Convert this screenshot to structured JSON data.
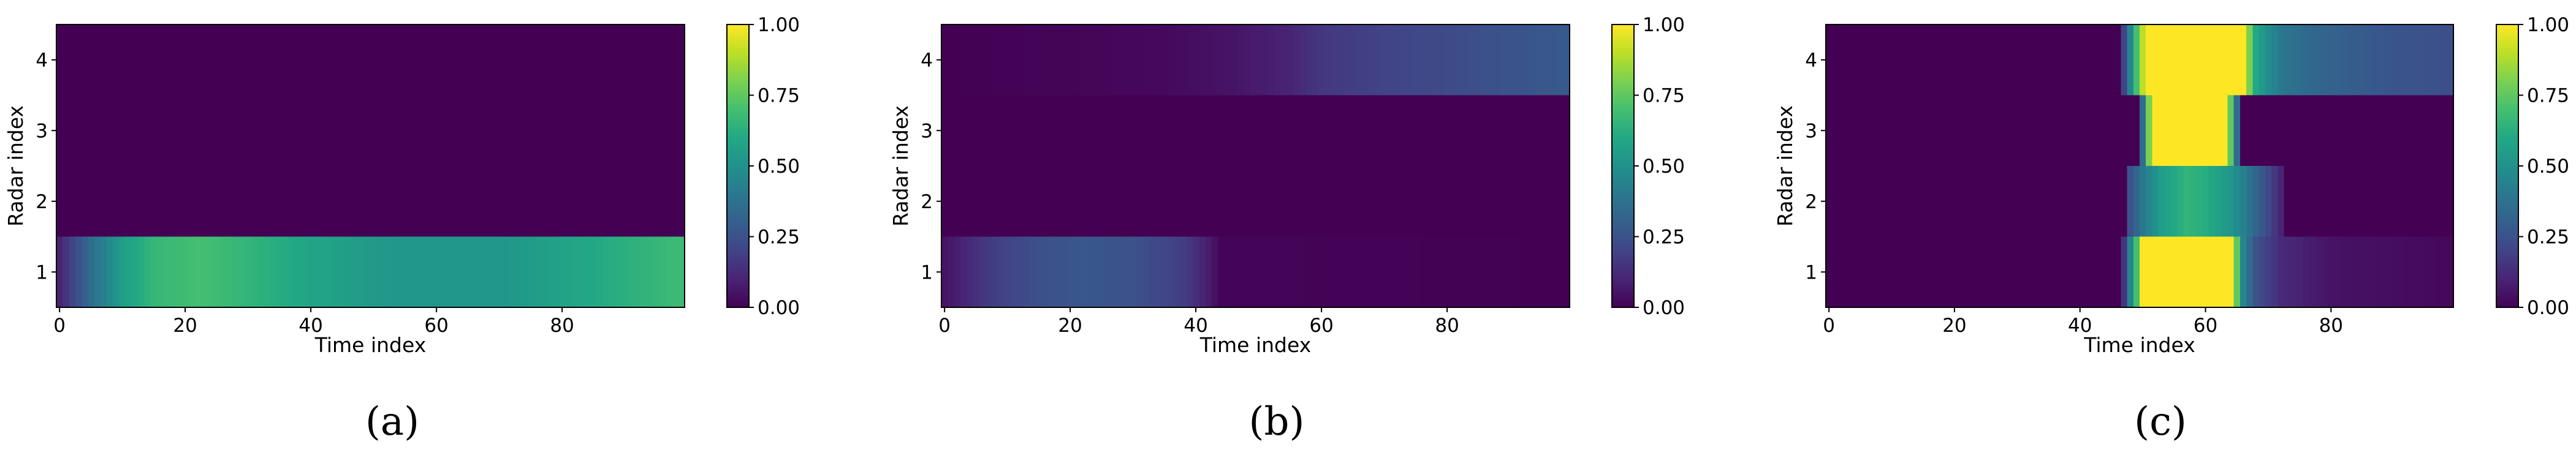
{
  "chart_data": [
    {
      "type": "heatmap",
      "caption": "(a)",
      "xlabel": "Time index",
      "ylabel": "Radar index",
      "x_ticks": [
        "0",
        "20",
        "40",
        "60",
        "80"
      ],
      "y_ticks": [
        "1",
        "2",
        "3",
        "4"
      ],
      "xlim": [
        -0.5,
        99.5
      ],
      "ylim": [
        0.5,
        4.5
      ],
      "colorbar": {
        "range": [
          0,
          1
        ],
        "ticks": [
          "0.00",
          "0.25",
          "0.50",
          "0.75",
          "1.00"
        ],
        "colormap": "viridis"
      },
      "rows": [
        {
          "radar": 1,
          "t": [
            0,
            3,
            6,
            10,
            15,
            22,
            30,
            40,
            55,
            70,
            85,
            99
          ],
          "v": [
            0.1,
            0.25,
            0.4,
            0.55,
            0.66,
            0.7,
            0.65,
            0.58,
            0.52,
            0.52,
            0.6,
            0.68
          ]
        },
        {
          "radar": 2,
          "t": [
            0,
            99
          ],
          "v": [
            0,
            0
          ]
        },
        {
          "radar": 3,
          "t": [
            0,
            99
          ],
          "v": [
            0,
            0
          ]
        },
        {
          "radar": 4,
          "t": [
            0,
            99
          ],
          "v": [
            0,
            0
          ]
        }
      ]
    },
    {
      "type": "heatmap",
      "caption": "(b)",
      "xlabel": "Time index",
      "ylabel": "Radar index",
      "x_ticks": [
        "0",
        "20",
        "40",
        "60",
        "80"
      ],
      "y_ticks": [
        "1",
        "2",
        "3",
        "4"
      ],
      "xlim": [
        -0.5,
        99.5
      ],
      "ylim": [
        0.5,
        4.5
      ],
      "colorbar": {
        "range": [
          0,
          1
        ],
        "ticks": [
          "0.00",
          "0.25",
          "0.50",
          "0.75",
          "1.00"
        ],
        "colormap": "viridis"
      },
      "rows": [
        {
          "radar": 1,
          "t": [
            0,
            4,
            8,
            14,
            22,
            30,
            38,
            42,
            44,
            99
          ],
          "v": [
            0.05,
            0.12,
            0.18,
            0.24,
            0.27,
            0.25,
            0.18,
            0.08,
            0.01,
            0
          ]
        },
        {
          "radar": 2,
          "t": [
            0,
            99
          ],
          "v": [
            0,
            0
          ]
        },
        {
          "radar": 3,
          "t": [
            0,
            99
          ],
          "v": [
            0,
            0
          ]
        },
        {
          "radar": 4,
          "t": [
            0,
            34,
            45,
            55,
            60,
            70,
            85,
            99
          ],
          "v": [
            0,
            0.02,
            0.05,
            0.1,
            0.16,
            0.2,
            0.24,
            0.28
          ]
        }
      ]
    },
    {
      "type": "heatmap",
      "caption": "(c)",
      "xlabel": "Time index",
      "ylabel": "Radar index",
      "x_ticks": [
        "0",
        "20",
        "40",
        "60",
        "80"
      ],
      "y_ticks": [
        "1",
        "2",
        "3",
        "4"
      ],
      "xlim": [
        -0.5,
        99.5
      ],
      "ylim": [
        0.5,
        4.5
      ],
      "colorbar": {
        "range": [
          0,
          1
        ],
        "ticks": [
          "0.00",
          "0.25",
          "0.50",
          "0.75",
          "1.00"
        ],
        "colormap": "viridis"
      },
      "rows": [
        {
          "radar": 1,
          "t": [
            0,
            46,
            47,
            48,
            49,
            50,
            64,
            65,
            66,
            68,
            72,
            80,
            99
          ],
          "v": [
            0,
            0,
            0.15,
            0.45,
            0.7,
            1,
            1,
            0.75,
            0.45,
            0.25,
            0.12,
            0.05,
            0.02
          ]
        },
        {
          "radar": 2,
          "t": [
            0,
            47,
            48,
            50,
            53,
            57,
            60,
            64,
            67,
            70,
            72,
            73,
            99
          ],
          "v": [
            0,
            0,
            0.25,
            0.4,
            0.55,
            0.65,
            0.62,
            0.52,
            0.38,
            0.22,
            0.1,
            0,
            0
          ]
        },
        {
          "radar": 3,
          "t": [
            0,
            49,
            50,
            51,
            52,
            63,
            64,
            65,
            66,
            99
          ],
          "v": [
            0,
            0,
            0.35,
            0.8,
            1,
            1,
            0.75,
            0.35,
            0,
            0
          ]
        },
        {
          "radar": 4,
          "t": [
            0,
            46,
            47,
            48,
            49,
            50,
            51,
            66,
            67,
            68,
            70,
            72,
            76,
            82,
            90,
            99
          ],
          "v": [
            0,
            0,
            0.2,
            0.45,
            0.7,
            0.9,
            1,
            1,
            0.8,
            0.6,
            0.48,
            0.4,
            0.34,
            0.3,
            0.26,
            0.24
          ]
        }
      ]
    }
  ]
}
